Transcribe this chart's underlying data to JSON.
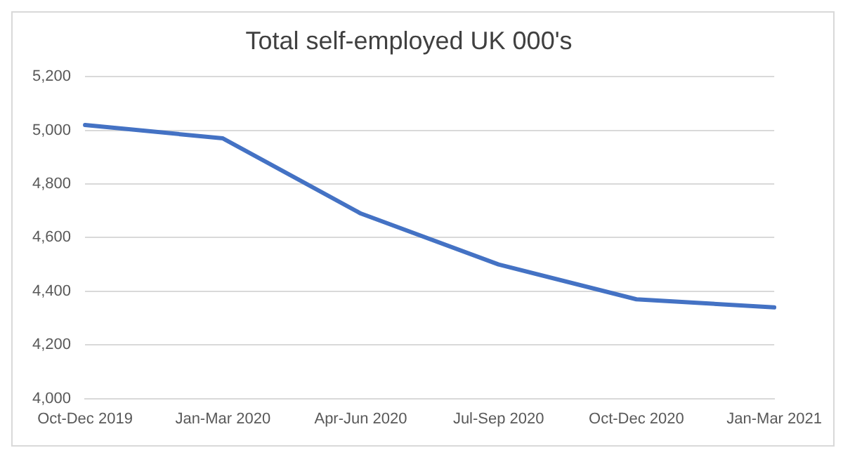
{
  "chart_data": {
    "type": "line",
    "title": "Total self-employed UK 000's",
    "categories": [
      "Oct-Dec 2019",
      "Jan-Mar 2020",
      "Apr-Jun 2020",
      "Jul-Sep 2020",
      "Oct-Dec 2020",
      "Jan-Mar 2021"
    ],
    "series": [
      {
        "color": "#4472c4",
        "values": [
          5020,
          4970,
          4690,
          4500,
          4370,
          4340
        ]
      }
    ],
    "ylim": [
      4000,
      5200
    ],
    "yticks": [
      {
        "value": 4000,
        "label": "4,000"
      },
      {
        "value": 4200,
        "label": "4,200"
      },
      {
        "value": 4400,
        "label": "4,400"
      },
      {
        "value": 4600,
        "label": "4,600"
      },
      {
        "value": 4800,
        "label": "4,800"
      },
      {
        "value": 5000,
        "label": "5,000"
      },
      {
        "value": 5200,
        "label": "5,200"
      }
    ],
    "grid": "y",
    "marker": "none",
    "line_style": "solid"
  }
}
